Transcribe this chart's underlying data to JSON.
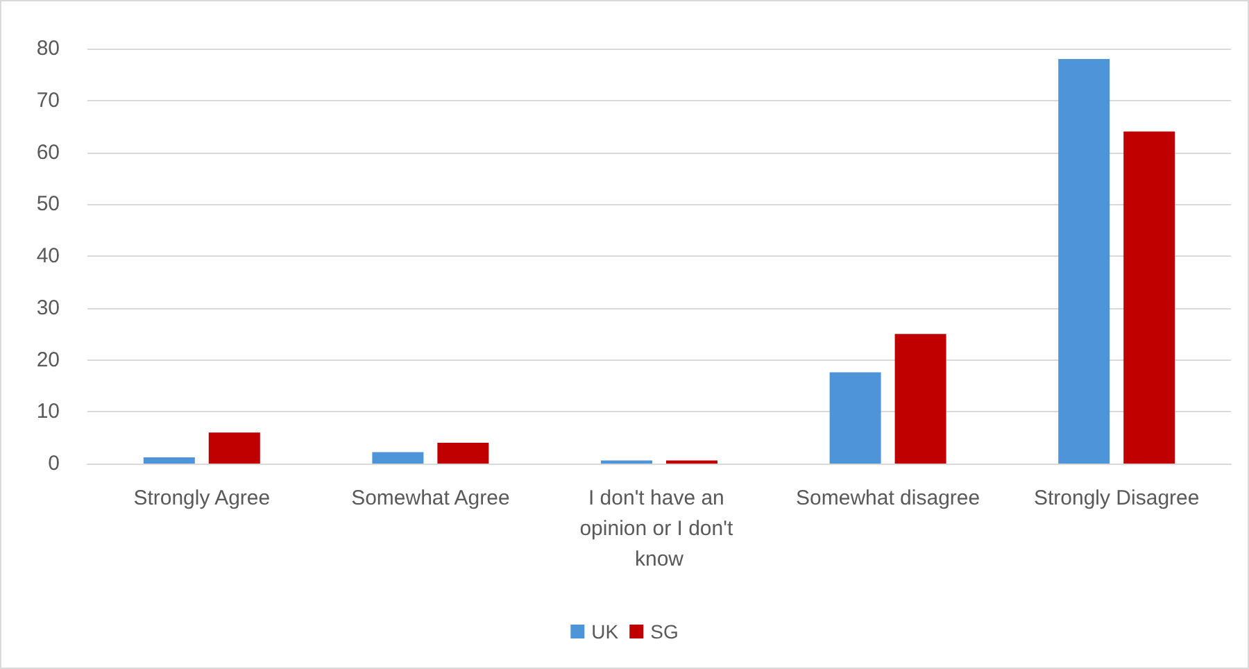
{
  "chart_data": {
    "type": "bar",
    "categories": [
      "Strongly Agree",
      "Somewhat Agree",
      "I don't have an opinion or I don't know",
      "Somewhat disagree",
      "Strongly Disagree"
    ],
    "series": [
      {
        "name": "UK",
        "color": "#4e94d8",
        "values": [
          1.2,
          2.2,
          0.6,
          17.6,
          78
        ]
      },
      {
        "name": "SG",
        "color": "#c00000",
        "values": [
          6,
          4,
          0.6,
          25,
          64
        ]
      }
    ],
    "ylim": [
      0,
      80
    ],
    "yticks": [
      0,
      10,
      20,
      30,
      40,
      50,
      60,
      70,
      80
    ],
    "grid": "y",
    "legend": "bottom"
  }
}
